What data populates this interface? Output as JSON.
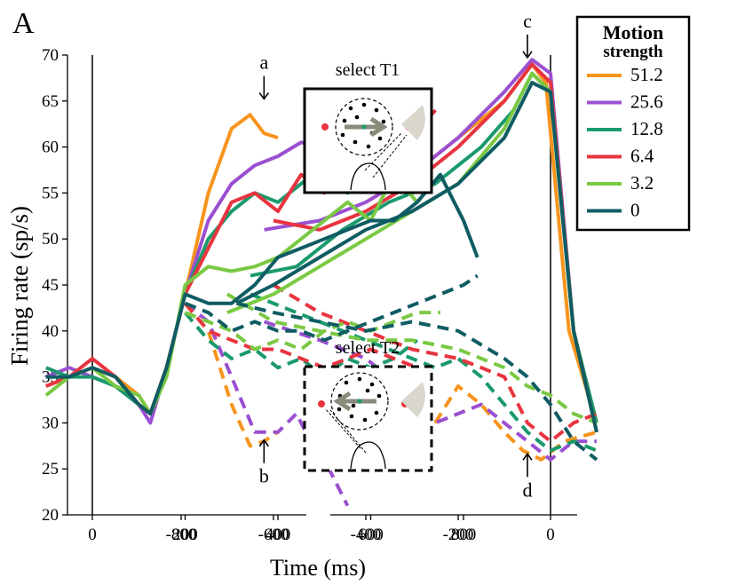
{
  "panel_label": "A",
  "chart_data": {
    "type": "line",
    "title": "",
    "ylabel": "Firing rate (sp/s)",
    "xlabel": "Time (ms)",
    "ylim": [
      20,
      70
    ],
    "y_ticks": [
      20,
      25,
      30,
      35,
      40,
      45,
      50,
      55,
      60,
      65,
      70
    ],
    "panels": [
      {
        "name": "aligned-to-motion-onset",
        "xlim": [
          -100,
          850
        ],
        "x_ticks": [
          0,
          200,
          400,
          600,
          800
        ],
        "x_tick_labels": [
          "0",
          "200",
          "400",
          "600",
          "800"
        ]
      },
      {
        "name": "aligned-to-saccade",
        "xlim": [
          -900,
          100
        ],
        "x_ticks": [
          -800,
          -600,
          -400,
          -200,
          0
        ],
        "x_tick_labels": [
          "-800",
          "-600",
          "-400",
          "-200",
          "0"
        ]
      }
    ],
    "legend": {
      "title_line1": "Motion",
      "title_line2": "strength",
      "placement": "top-right",
      "entries": [
        "51.2",
        "25.6",
        "12.8",
        "6.4",
        "3.2",
        "0"
      ]
    },
    "series": [
      {
        "name": "51.2",
        "color": "#f7941d",
        "T1_onset": [
          [
            -100,
            34
          ],
          [
            -50,
            35
          ],
          [
            0,
            36
          ],
          [
            50,
            35
          ],
          [
            100,
            33
          ],
          [
            125,
            31
          ],
          [
            160,
            36
          ],
          [
            200,
            44
          ],
          [
            250,
            55
          ],
          [
            300,
            62
          ],
          [
            340,
            63.5
          ],
          [
            370,
            61.5
          ],
          [
            400,
            61
          ]
        ],
        "T2_onset": [
          [
            200,
            43
          ],
          [
            250,
            40
          ],
          [
            300,
            32
          ],
          [
            340,
            27.5
          ],
          [
            370,
            28
          ],
          [
            400,
            29
          ]
        ],
        "T1_sacc": [
          [
            -400,
            54
          ],
          [
            -300,
            57
          ],
          [
            -200,
            61
          ],
          [
            -100,
            65
          ],
          [
            -40,
            69
          ],
          [
            -10,
            67
          ],
          [
            40,
            40
          ],
          [
            100,
            30
          ]
        ],
        "T2_sacc": [
          [
            -250,
            30
          ],
          [
            -200,
            34
          ],
          [
            -150,
            32
          ],
          [
            -100,
            29
          ],
          [
            -60,
            27
          ],
          [
            -20,
            26
          ],
          [
            30,
            28
          ],
          [
            100,
            29
          ]
        ]
      },
      {
        "name": "25.6",
        "color": "#9b4fd1",
        "T1_onset": [
          [
            -100,
            35
          ],
          [
            -50,
            36
          ],
          [
            0,
            35
          ],
          [
            50,
            34
          ],
          [
            100,
            32
          ],
          [
            125,
            30
          ],
          [
            160,
            36
          ],
          [
            200,
            44
          ],
          [
            250,
            52
          ],
          [
            300,
            56
          ],
          [
            350,
            58
          ],
          [
            400,
            59
          ],
          [
            450,
            60.5
          ],
          [
            500,
            60
          ],
          [
            540,
            61
          ]
        ],
        "T2_onset": [
          [
            200,
            43
          ],
          [
            250,
            41
          ],
          [
            300,
            35
          ],
          [
            350,
            29
          ],
          [
            400,
            29
          ],
          [
            440,
            31
          ],
          [
            480,
            27
          ],
          [
            510,
            25
          ],
          [
            550,
            21
          ]
        ],
        "T1_sacc": [
          [
            -620,
            51
          ],
          [
            -500,
            52
          ],
          [
            -400,
            54
          ],
          [
            -300,
            57
          ],
          [
            -200,
            61
          ],
          [
            -100,
            66
          ],
          [
            -40,
            69.5
          ],
          [
            0,
            68
          ],
          [
            50,
            40
          ],
          [
            100,
            29
          ]
        ],
        "T2_sacc": [
          [
            -620,
            41
          ],
          [
            -500,
            39
          ],
          [
            -400,
            37
          ],
          [
            -300,
            33
          ],
          [
            -250,
            30
          ],
          [
            -200,
            31
          ],
          [
            -150,
            32
          ],
          [
            -100,
            30
          ],
          [
            -50,
            28
          ],
          [
            0,
            26
          ],
          [
            50,
            28
          ],
          [
            100,
            28
          ]
        ]
      },
      {
        "name": "12.8",
        "color": "#1a9a6c",
        "T1_onset": [
          [
            -100,
            36
          ],
          [
            -50,
            35
          ],
          [
            0,
            35
          ],
          [
            50,
            34
          ],
          [
            100,
            32
          ],
          [
            125,
            31
          ],
          [
            160,
            36
          ],
          [
            200,
            44
          ],
          [
            250,
            50
          ],
          [
            300,
            53
          ],
          [
            350,
            55
          ],
          [
            400,
            54
          ],
          [
            450,
            56
          ],
          [
            500,
            58
          ],
          [
            550,
            55
          ],
          [
            600,
            58
          ],
          [
            650,
            62
          ],
          [
            680,
            64
          ]
        ],
        "T2_onset": [
          [
            200,
            42
          ],
          [
            250,
            39
          ],
          [
            300,
            37
          ],
          [
            350,
            38
          ],
          [
            400,
            36
          ],
          [
            450,
            37
          ],
          [
            500,
            35
          ],
          [
            550,
            37
          ],
          [
            600,
            36
          ],
          [
            650,
            37
          ],
          [
            700,
            39
          ]
        ],
        "T1_sacc": [
          [
            -650,
            46
          ],
          [
            -550,
            47
          ],
          [
            -450,
            51
          ],
          [
            -350,
            54
          ],
          [
            -250,
            56
          ],
          [
            -150,
            60
          ],
          [
            -80,
            64
          ],
          [
            -40,
            68
          ],
          [
            0,
            66
          ],
          [
            50,
            40
          ],
          [
            100,
            30
          ]
        ],
        "T2_sacc": [
          [
            -650,
            44
          ],
          [
            -550,
            42
          ],
          [
            -450,
            40
          ],
          [
            -350,
            38
          ],
          [
            -250,
            36
          ],
          [
            -200,
            37
          ],
          [
            -150,
            35
          ],
          [
            -100,
            32
          ],
          [
            -50,
            29
          ],
          [
            0,
            27
          ],
          [
            50,
            28
          ],
          [
            100,
            27
          ]
        ]
      },
      {
        "name": "6.4",
        "color": "#e8343f",
        "T1_onset": [
          [
            -100,
            34
          ],
          [
            -50,
            35
          ],
          [
            0,
            37
          ],
          [
            50,
            35
          ],
          [
            100,
            32
          ],
          [
            125,
            31
          ],
          [
            160,
            36
          ],
          [
            200,
            44
          ],
          [
            250,
            49
          ],
          [
            300,
            54
          ],
          [
            350,
            55
          ],
          [
            400,
            53
          ],
          [
            450,
            57
          ],
          [
            500,
            55
          ],
          [
            550,
            59
          ],
          [
            600,
            56
          ],
          [
            650,
            58
          ],
          [
            700,
            62
          ],
          [
            740,
            64
          ]
        ],
        "T2_onset": [
          [
            200,
            43
          ],
          [
            250,
            40
          ],
          [
            300,
            39
          ],
          [
            350,
            38
          ],
          [
            400,
            38
          ],
          [
            450,
            37
          ],
          [
            500,
            36
          ],
          [
            550,
            37
          ],
          [
            600,
            38
          ],
          [
            650,
            37
          ],
          [
            700,
            36
          ],
          [
            740,
            35
          ]
        ],
        "T1_sacc": [
          [
            -600,
            52
          ],
          [
            -500,
            51
          ],
          [
            -400,
            53
          ],
          [
            -300,
            56
          ],
          [
            -200,
            60
          ],
          [
            -100,
            65
          ],
          [
            -40,
            69
          ],
          [
            0,
            67
          ],
          [
            50,
            40
          ],
          [
            100,
            29
          ]
        ],
        "T2_sacc": [
          [
            -600,
            45
          ],
          [
            -500,
            42
          ],
          [
            -400,
            40
          ],
          [
            -300,
            38
          ],
          [
            -200,
            37
          ],
          [
            -150,
            36
          ],
          [
            -100,
            35
          ],
          [
            -50,
            30
          ],
          [
            0,
            28
          ],
          [
            50,
            30
          ],
          [
            100,
            31
          ]
        ]
      },
      {
        "name": "3.2",
        "color": "#7ac943",
        "T1_onset": [
          [
            -100,
            33
          ],
          [
            -50,
            35
          ],
          [
            0,
            36
          ],
          [
            50,
            34
          ],
          [
            100,
            33
          ],
          [
            125,
            31
          ],
          [
            160,
            35
          ],
          [
            200,
            45
          ],
          [
            250,
            47
          ],
          [
            300,
            46.5
          ],
          [
            350,
            47
          ],
          [
            400,
            48
          ],
          [
            450,
            50
          ],
          [
            500,
            52
          ],
          [
            550,
            54
          ],
          [
            600,
            52
          ],
          [
            650,
            57
          ],
          [
            700,
            54
          ],
          [
            750,
            57
          ]
        ],
        "T2_onset": [
          [
            200,
            42
          ],
          [
            250,
            41
          ],
          [
            300,
            40
          ],
          [
            350,
            38
          ],
          [
            400,
            39
          ],
          [
            450,
            38
          ],
          [
            500,
            40
          ],
          [
            550,
            41
          ],
          [
            600,
            40
          ],
          [
            650,
            41
          ],
          [
            700,
            42
          ],
          [
            750,
            42
          ]
        ],
        "T1_sacc": [
          [
            -700,
            42
          ],
          [
            -600,
            44
          ],
          [
            -500,
            47
          ],
          [
            -400,
            50
          ],
          [
            -300,
            53
          ],
          [
            -200,
            56
          ],
          [
            -100,
            62
          ],
          [
            -40,
            68
          ],
          [
            0,
            66
          ],
          [
            50,
            40
          ],
          [
            100,
            29
          ]
        ],
        "T2_sacc": [
          [
            -700,
            44
          ],
          [
            -600,
            41
          ],
          [
            -500,
            40
          ],
          [
            -400,
            39
          ],
          [
            -300,
            39
          ],
          [
            -200,
            38
          ],
          [
            -100,
            36
          ],
          [
            -50,
            34
          ],
          [
            0,
            33
          ],
          [
            50,
            31
          ],
          [
            100,
            30
          ]
        ]
      },
      {
        "name": "0",
        "color": "#0f5c63",
        "T1_onset": [
          [
            -100,
            35
          ],
          [
            -50,
            35
          ],
          [
            0,
            36
          ],
          [
            50,
            35
          ],
          [
            100,
            32
          ],
          [
            125,
            31
          ],
          [
            160,
            36
          ],
          [
            200,
            44
          ],
          [
            250,
            43
          ],
          [
            300,
            43
          ],
          [
            350,
            45
          ],
          [
            400,
            48
          ],
          [
            450,
            49
          ],
          [
            500,
            50
          ],
          [
            550,
            51
          ],
          [
            600,
            52
          ],
          [
            650,
            52
          ],
          [
            700,
            54
          ],
          [
            750,
            57
          ],
          [
            800,
            52
          ],
          [
            830,
            48
          ]
        ],
        "T2_onset": [
          [
            200,
            43
          ],
          [
            250,
            42
          ],
          [
            300,
            40
          ],
          [
            350,
            41
          ],
          [
            400,
            40
          ],
          [
            450,
            40
          ],
          [
            500,
            39
          ],
          [
            550,
            40
          ],
          [
            600,
            41
          ],
          [
            650,
            42
          ],
          [
            700,
            43
          ],
          [
            750,
            44
          ],
          [
            800,
            45
          ],
          [
            830,
            46
          ]
        ],
        "T1_sacc": [
          [
            -680,
            43
          ],
          [
            -600,
            45
          ],
          [
            -500,
            48
          ],
          [
            -400,
            51
          ],
          [
            -300,
            53
          ],
          [
            -200,
            56
          ],
          [
            -100,
            61
          ],
          [
            -40,
            67
          ],
          [
            0,
            66
          ],
          [
            50,
            40
          ],
          [
            100,
            29
          ]
        ],
        "T2_sacc": [
          [
            -680,
            43
          ],
          [
            -600,
            42
          ],
          [
            -500,
            41
          ],
          [
            -400,
            40
          ],
          [
            -300,
            41
          ],
          [
            -200,
            40
          ],
          [
            -100,
            37
          ],
          [
            -50,
            35
          ],
          [
            0,
            32
          ],
          [
            50,
            28
          ],
          [
            100,
            26
          ]
        ]
      }
    ],
    "annotations": [
      {
        "text": "a",
        "panel": 0,
        "x": 370,
        "y": 68.5,
        "arrow": "down"
      },
      {
        "text": "b",
        "panel": 0,
        "x": 370,
        "y": 23.5,
        "arrow": "up"
      },
      {
        "text": "c",
        "panel": 1,
        "x": -50,
        "y": 73,
        "arrow": "down"
      },
      {
        "text": "d",
        "panel": 1,
        "x": -50,
        "y": 22,
        "arrow": "up"
      }
    ],
    "insets": [
      {
        "label": "select T1",
        "border": "solid"
      },
      {
        "label": "select T2",
        "border": "dashed"
      }
    ]
  }
}
